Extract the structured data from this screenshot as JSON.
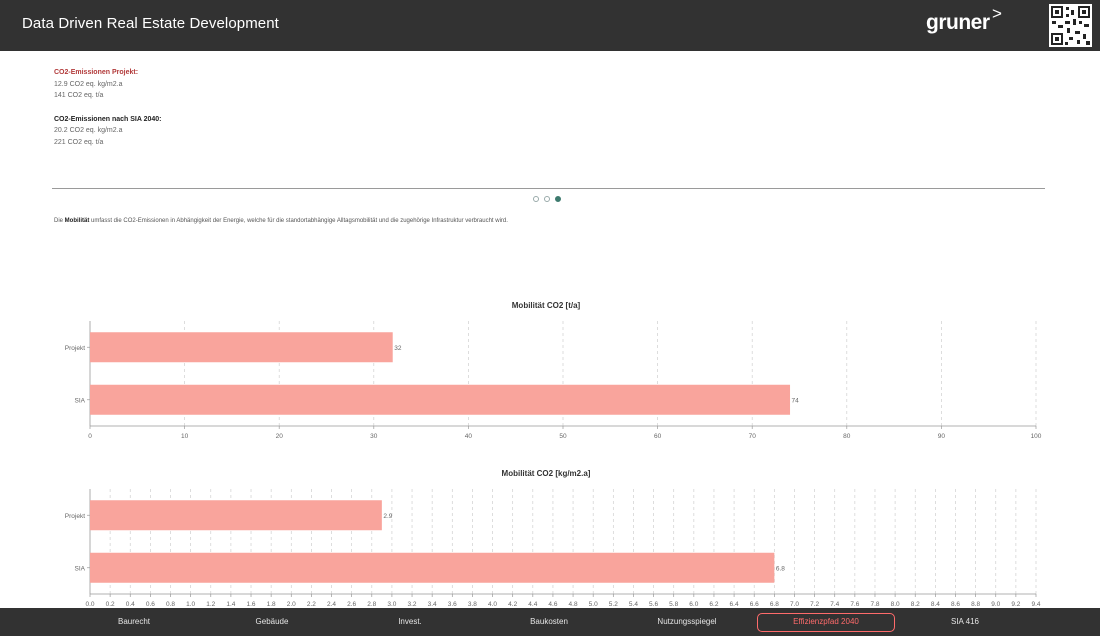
{
  "app": {
    "title": "Data Driven Real Estate Development"
  },
  "logo": {
    "text": "gruner",
    "chevron": ">"
  },
  "emissions": {
    "project": {
      "heading": "CO2-Emissionen Projekt:",
      "line1": "12.9 CO2 eq. kg/m2.a",
      "line2": "141 CO2 eq. t/a"
    },
    "sia": {
      "heading": "CO2-Emissionen nach SIA 2040:",
      "line1": "20.2 CO2 eq. kg/m2.a",
      "line2": "221 CO2 eq. t/a"
    }
  },
  "carousel": {
    "active_index": 2,
    "count": 3
  },
  "description": {
    "prefix": "Die ",
    "term": "Mobilität",
    "suffix": " umfasst die CO2-Emissionen in Abhängigkeit der Energie, welche für die standortabhängige Alltagsmobilität und die zugehörige Infrastruktur verbraucht wird."
  },
  "chart_data": [
    {
      "type": "bar",
      "orientation": "horizontal",
      "title": "Mobilität CO2 [t/a]",
      "categories": [
        "Projekt",
        "SIA"
      ],
      "values": [
        32,
        74
      ],
      "xlim": [
        0,
        100
      ],
      "xticks": [
        0,
        10,
        20,
        30,
        40,
        50,
        60,
        70,
        80,
        90,
        100
      ],
      "grid": true,
      "color": "#f9a49c"
    },
    {
      "type": "bar",
      "orientation": "horizontal",
      "title": "Mobilität CO2 [kg/m2.a]",
      "categories": [
        "Projekt",
        "SIA"
      ],
      "values": [
        2.9,
        6.8
      ],
      "xlim": [
        0,
        9.4
      ],
      "xticks": [
        0,
        0.2,
        0.4,
        0.6,
        0.8,
        1,
        1.2,
        1.4,
        1.6,
        1.8,
        2,
        2.2,
        2.4,
        2.6,
        2.8,
        3,
        3.2,
        3.4,
        3.6,
        3.8,
        4,
        4.2,
        4.4,
        4.6,
        4.8,
        5,
        5.2,
        5.4,
        5.6,
        5.8,
        6,
        6.2,
        6.4,
        6.6,
        6.8,
        7,
        7.2,
        7.4,
        7.6,
        7.8,
        8,
        8.2,
        8.4,
        8.6,
        8.8,
        9,
        9.2,
        9.4
      ],
      "tick_labels": [
        "0.0",
        "0.2",
        "0.4",
        "0.6",
        "0.8",
        "1.0",
        "1.2",
        "1.4",
        "1.6",
        "1.8",
        "2.0",
        "2.2",
        "2.4",
        "2.6",
        "2.8",
        "3.0",
        "3.2",
        "3.4",
        "3.6",
        "3.8",
        "4.0",
        "4.2",
        "4.4",
        "4.6",
        "4.8",
        "5.0",
        "5.2",
        "5.4",
        "5.6",
        "5.8",
        "6.0",
        "6.2",
        "6.4",
        "6.6",
        "6.8",
        "7.0",
        "7.2",
        "7.4",
        "7.6",
        "7.8",
        "8.0",
        "8.2",
        "8.4",
        "8.6",
        "8.8",
        "9.0",
        "9.2",
        "9.4"
      ],
      "grid": true,
      "color": "#f9a49c"
    }
  ],
  "nav": {
    "items": [
      "Baurecht",
      "Gebäude",
      "Invest.",
      "Baukosten",
      "Nutzungsspiegel",
      "Effizienzpfad 2040",
      "SIA 416"
    ],
    "active": "Effizienzpfad 2040"
  }
}
